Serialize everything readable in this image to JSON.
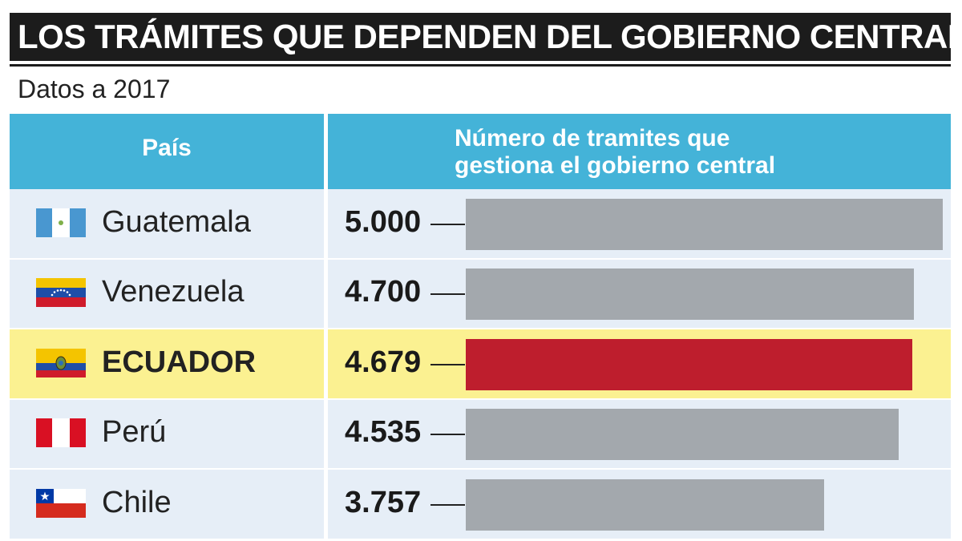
{
  "title": "LOS TRÁMITES QUE DEPENDEN DEL GOBIERNO CENTRAL",
  "subtitle": "Datos a 2017",
  "header": {
    "country": "País",
    "value_line1": "Número de tramites que",
    "value_line2": "gestiona el gobierno central"
  },
  "colors": {
    "header": "#44b3d8",
    "row_bg": "#e6eef7",
    "highlight_bg": "#fbf191",
    "bar": "#a3a8ad",
    "highlight_bar": "#be1e2d"
  },
  "rows": [
    {
      "country": "Guatemala",
      "value_label": "5.000",
      "flag_icon": "guatemala-flag-icon",
      "highlight": false
    },
    {
      "country": "Venezuela",
      "value_label": "4.700",
      "flag_icon": "venezuela-flag-icon",
      "highlight": false
    },
    {
      "country": "ECUADOR",
      "value_label": "4.679",
      "flag_icon": "ecuador-flag-icon",
      "highlight": true
    },
    {
      "country": "Perú",
      "value_label": "4.535",
      "flag_icon": "peru-flag-icon",
      "highlight": false
    },
    {
      "country": "Chile",
      "value_label": "3.757",
      "flag_icon": "chile-flag-icon",
      "highlight": false
    }
  ],
  "chart_data": {
    "type": "bar",
    "orientation": "horizontal",
    "title": "LOS TRÁMITES QUE DEPENDEN DEL GOBIERNO CENTRAL",
    "subtitle": "Datos a 2017",
    "categories": [
      "Guatemala",
      "Venezuela",
      "ECUADOR",
      "Perú",
      "Chile"
    ],
    "values": [
      5000,
      4700,
      4679,
      4535,
      3757
    ],
    "highlight_category": "ECUADOR",
    "xlabel": "Número de tramites que gestiona el gobierno central",
    "ylabel": "País",
    "xlim": [
      0,
      5000
    ],
    "grid": false
  }
}
